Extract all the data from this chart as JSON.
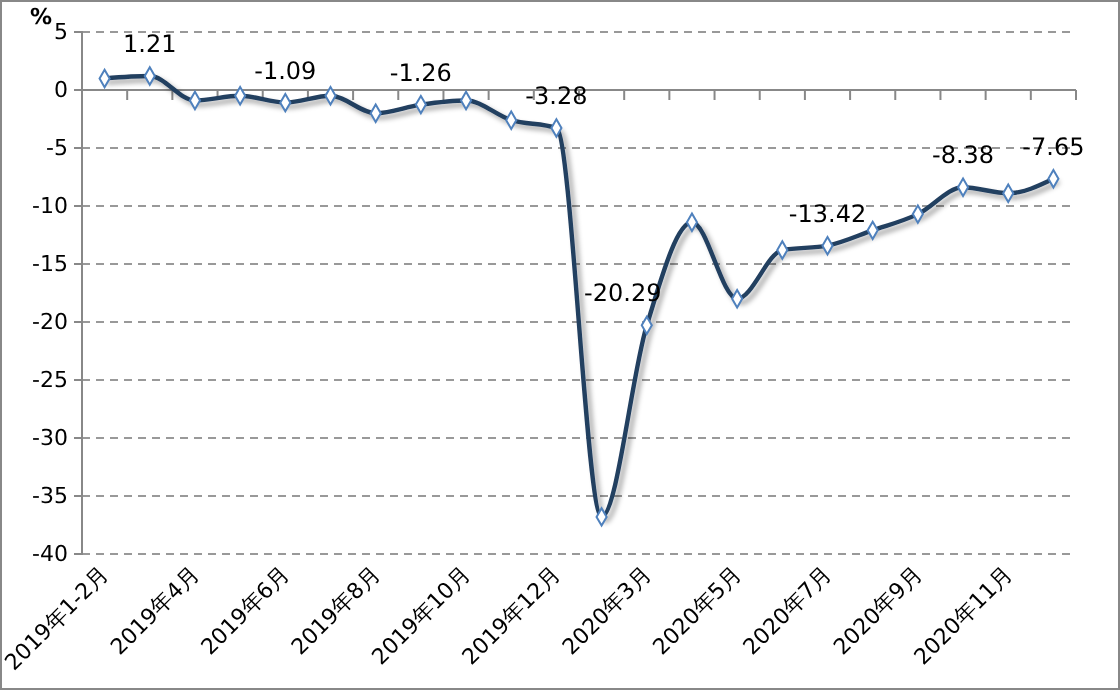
{
  "chart_data": {
    "type": "line",
    "ylabel": "%",
    "categories": [
      "2019年1-2月",
      null,
      "2019年4月",
      null,
      "2019年6月",
      null,
      "2019年8月",
      null,
      "2019年10月",
      null,
      "2019年12月",
      null,
      "2020年3月",
      null,
      "2020年5月",
      null,
      "2020年7月",
      null,
      "2020年9月",
      null,
      "2020年11月",
      null
    ],
    "series": [
      {
        "color": "#243f60",
        "values": [
          1.0,
          1.21,
          -0.9,
          -0.5,
          -1.09,
          -0.5,
          -2.0,
          -1.26,
          -0.9,
          -2.6,
          -3.28,
          -36.8,
          -20.29,
          -11.4,
          -18.0,
          -13.8,
          -13.42,
          -12.1,
          -10.7,
          -8.38,
          -8.9,
          -7.65
        ],
        "value_labels": [
          null,
          "1.21",
          null,
          null,
          "-1.09",
          null,
          null,
          "-1.26",
          null,
          null,
          "-3.28",
          null,
          "-20.29",
          null,
          null,
          null,
          "-13.42",
          null,
          null,
          "-8.38",
          null,
          "-7.65"
        ]
      }
    ],
    "ylim": [
      -40,
      5
    ],
    "yticks": [
      -40,
      -35,
      -30,
      -25,
      -20,
      -15,
      -10,
      -5,
      0,
      5
    ],
    "grid": "y",
    "marker": "diamond",
    "line_style": "solid"
  }
}
